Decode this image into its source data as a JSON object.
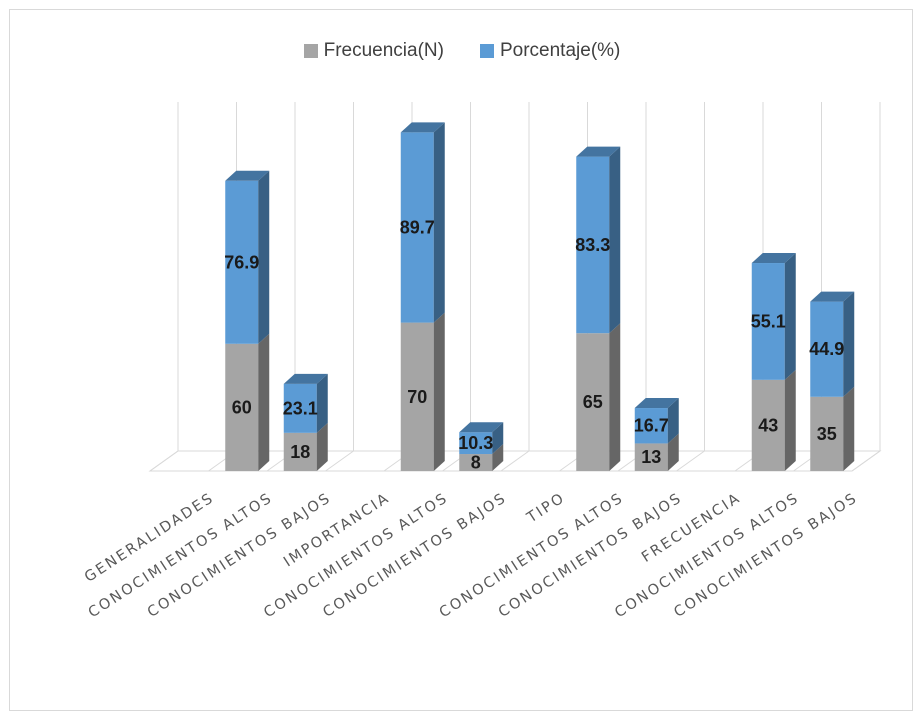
{
  "chart_data": {
    "type": "bar",
    "stacked": true,
    "categories": [
      "GENERALIDADES",
      "CONOCIMIENTOS ALTOS",
      "CONOCIMIENTOS BAJOS",
      "IMPORTANCIA",
      "CONOCIMIENTOS ALTOS",
      "CONOCIMIENTOS BAJOS",
      "TIPO",
      "CONOCIMIENTOS ALTOS",
      "CONOCIMIENTOS BAJOS",
      "FRECUENCIA",
      "CONOCIMIENTOS ALTOS",
      "CONOCIMIENTOS BAJOS"
    ],
    "series": [
      {
        "name": "Frecuencia(N)",
        "color": "#a5a5a5",
        "values": [
          null,
          60,
          18,
          null,
          70,
          8,
          null,
          65,
          13,
          null,
          43,
          35
        ]
      },
      {
        "name": "Porcentaje(%)",
        "color": "#5b9bd5",
        "values": [
          null,
          76.9,
          23.1,
          null,
          89.7,
          10.3,
          null,
          83.3,
          16.7,
          null,
          55.1,
          44.9
        ]
      }
    ],
    "legend_position": "top",
    "grid": "vertical",
    "three_d": true,
    "ylim": [
      0,
      165
    ]
  }
}
